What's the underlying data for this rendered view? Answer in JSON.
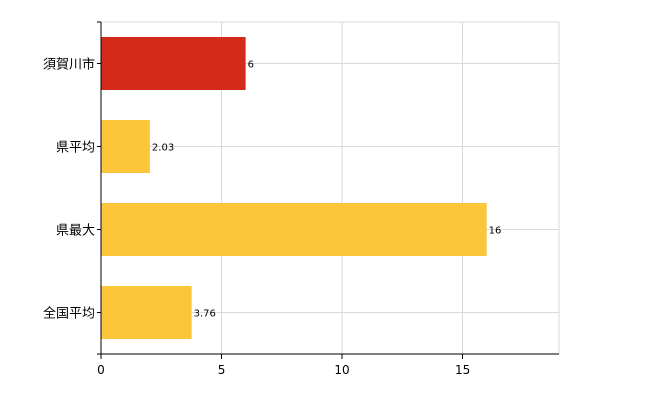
{
  "chart_data": {
    "type": "bar",
    "orientation": "horizontal",
    "categories": [
      "須賀川市",
      "県平均",
      "県最大",
      "全国平均"
    ],
    "values": [
      6,
      2.03,
      16,
      3.76
    ],
    "value_labels": [
      "6",
      "2.03",
      "16",
      "3.76"
    ],
    "bar_colors": [
      "#d42a1a",
      "#fbc63a",
      "#fbc63a",
      "#fbc63a"
    ],
    "xlim": [
      0,
      19
    ],
    "x_ticks": [
      0,
      5,
      10,
      15
    ],
    "x_tick_labels": [
      "0",
      "5",
      "10",
      "15"
    ],
    "grid": true,
    "legend": "none",
    "title": "",
    "xlabel": "",
    "ylabel": ""
  }
}
